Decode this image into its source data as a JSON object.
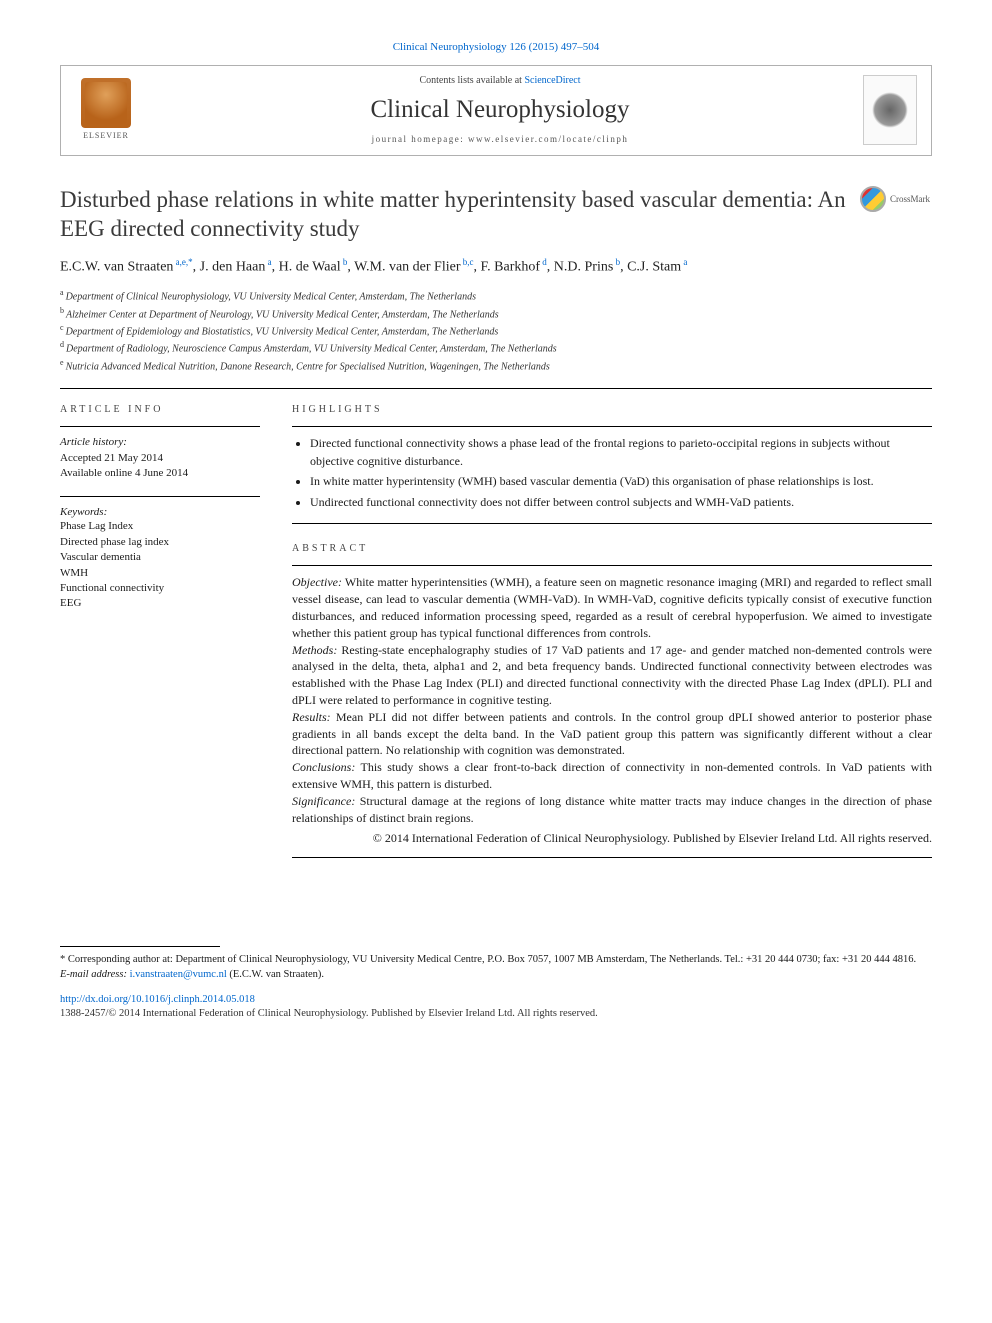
{
  "journal_ref": "Clinical Neurophysiology 126 (2015) 497–504",
  "header": {
    "contents_prefix": "Contents lists available at ",
    "contents_link": "ScienceDirect",
    "journal_name": "Clinical Neurophysiology",
    "homepage_prefix": "journal homepage: ",
    "homepage_url": "www.elsevier.com/locate/clinph",
    "publisher_label": "ELSEVIER"
  },
  "crossmark_label": "CrossMark",
  "title": "Disturbed phase relations in white matter hyperintensity based vascular dementia: An EEG directed connectivity study",
  "authors_html": "E.C.W. van Straaten|a,e,*|, J. den Haan|a|, H. de Waal|b|, W.M. van der Flier|b,c|, F. Barkhof|d|, N.D. Prins|b|, C.J. Stam|a|",
  "affiliations": [
    {
      "sup": "a",
      "text": "Department of Clinical Neurophysiology, VU University Medical Center, Amsterdam, The Netherlands"
    },
    {
      "sup": "b",
      "text": "Alzheimer Center at Department of Neurology, VU University Medical Center, Amsterdam, The Netherlands"
    },
    {
      "sup": "c",
      "text": "Department of Epidemiology and Biostatistics, VU University Medical Center, Amsterdam, The Netherlands"
    },
    {
      "sup": "d",
      "text": "Department of Radiology, Neuroscience Campus Amsterdam, VU University Medical Center, Amsterdam, The Netherlands"
    },
    {
      "sup": "e",
      "text": "Nutricia Advanced Medical Nutrition, Danone Research, Centre for Specialised Nutrition, Wageningen, The Netherlands"
    }
  ],
  "article_info": {
    "heading": "ARTICLE INFO",
    "history_label": "Article history:",
    "accepted": "Accepted 21 May 2014",
    "online": "Available online 4 June 2014",
    "keywords_label": "Keywords:",
    "keywords": [
      "Phase Lag Index",
      "Directed phase lag index",
      "Vascular dementia",
      "WMH",
      "Functional connectivity",
      "EEG"
    ]
  },
  "highlights": {
    "heading": "HIGHLIGHTS",
    "items": [
      "Directed functional connectivity shows a phase lead of the frontal regions to parieto-occipital regions in subjects without objective cognitive disturbance.",
      "In white matter hyperintensity (WMH) based vascular dementia (VaD) this organisation of phase relationships is lost.",
      "Undirected functional connectivity does not differ between control subjects and WMH-VaD patients."
    ]
  },
  "abstract": {
    "heading": "ABSTRACT",
    "objective_label": "Objective:",
    "objective": " White matter hyperintensities (WMH), a feature seen on magnetic resonance imaging (MRI) and regarded to reflect small vessel disease, can lead to vascular dementia (WMH-VaD). In WMH-VaD, cognitive deficits typically consist of executive function disturbances, and reduced information processing speed, regarded as a result of cerebral hypoperfusion. We aimed to investigate whether this patient group has typical functional differences from controls.",
    "methods_label": "Methods:",
    "methods": " Resting-state encephalography studies of 17 VaD patients and 17 age- and gender matched non-demented controls were analysed in the delta, theta, alpha1 and 2, and beta frequency bands. Undirected functional connectivity between electrodes was established with the Phase Lag Index (PLI) and directed functional connectivity with the directed Phase Lag Index (dPLI). PLI and dPLI were related to performance in cognitive testing.",
    "results_label": "Results:",
    "results": " Mean PLI did not differ between patients and controls. In the control group dPLI showed anterior to posterior phase gradients in all bands except the delta band. In the VaD patient group this pattern was significantly different without a clear directional pattern. No relationship with cognition was demonstrated.",
    "conclusions_label": "Conclusions:",
    "conclusions": " This study shows a clear front-to-back direction of connectivity in non-demented controls. In VaD patients with extensive WMH, this pattern is disturbed.",
    "significance_label": "Significance:",
    "significance": " Structural damage at the regions of long distance white matter tracts may induce changes in the direction of phase relationships of distinct brain regions.",
    "copyright": "© 2014 International Federation of Clinical Neurophysiology. Published by Elsevier Ireland Ltd. All rights reserved."
  },
  "footnote": {
    "corresponding": "* Corresponding author at: Department of Clinical Neurophysiology, VU University Medical Centre, P.O. Box 7057, 1007 MB Amsterdam, The Netherlands. Tel.: +31 20 444 0730; fax: +31 20 444 4816.",
    "email_label": "E-mail address: ",
    "email": "i.vanstraaten@vumc.nl",
    "email_suffix": " (E.C.W. van Straaten)."
  },
  "doi": {
    "url": "http://dx.doi.org/10.1016/j.clinph.2014.05.018",
    "issn_line": "1388-2457/© 2014 International Federation of Clinical Neurophysiology. Published by Elsevier Ireland Ltd. All rights reserved."
  },
  "colors": {
    "link": "#0066cc",
    "text": "#1a1a1a",
    "rule": "#000000",
    "box_border": "#b0b0b0"
  }
}
